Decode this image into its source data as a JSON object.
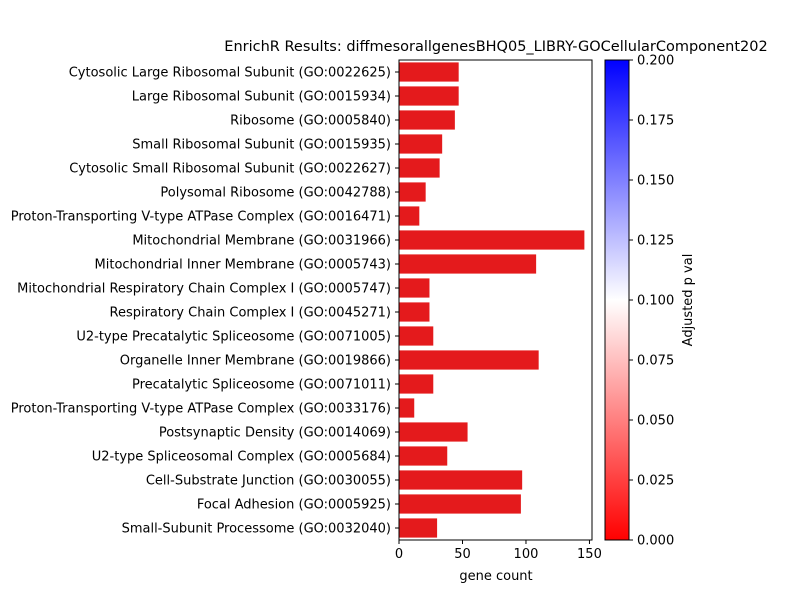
{
  "chart_data": {
    "type": "bar",
    "orientation": "horizontal",
    "title": "EnrichR Results: diffmesorallgenesBHQ05_LIBRY-GOCellularComponent202",
    "xlabel": "gene count",
    "ylabel": "",
    "xlim": [
      0,
      152
    ],
    "xticks": [
      0,
      50,
      100,
      150
    ],
    "bar_color": "#e41a1c",
    "categories": [
      "Cytosolic Large Ribosomal Subunit (GO:0022625)",
      "Large Ribosomal Subunit (GO:0015934)",
      "Ribosome (GO:0005840)",
      "Small Ribosomal Subunit (GO:0015935)",
      "Cytosolic Small Ribosomal Subunit (GO:0022627)",
      "Polysomal Ribosome (GO:0042788)",
      "Proton-Transporting V-type ATPase Complex (GO:0016471)",
      "Mitochondrial Membrane (GO:0031966)",
      "Mitochondrial Inner Membrane (GO:0005743)",
      "Mitochondrial Respiratory Chain Complex I (GO:0005747)",
      "Respiratory Chain Complex I (GO:0045271)",
      "U2-type Precatalytic Spliceosome (GO:0071005)",
      "Organelle Inner Membrane (GO:0019866)",
      "Precatalytic Spliceosome (GO:0071011)",
      "Proton-Transporting V-type ATPase Complex (GO:0033176)",
      "Postsynaptic Density (GO:0014069)",
      "U2-type Spliceosomal Complex (GO:0005684)",
      "Cell-Substrate Junction (GO:0030055)",
      "Focal Adhesion (GO:0005925)",
      "Small-Subunit Processome (GO:0032040)"
    ],
    "values": [
      47,
      47,
      44,
      34,
      32,
      21,
      16,
      146,
      108,
      24,
      24,
      27,
      110,
      27,
      12,
      54,
      38,
      97,
      96,
      30
    ],
    "colorbar": {
      "label": "Adjusted p val",
      "range": [
        0,
        0.2
      ],
      "ticks": [
        "0.000",
        "0.025",
        "0.050",
        "0.075",
        "0.100",
        "0.125",
        "0.150",
        "0.175",
        "0.200"
      ],
      "colors": [
        "#ff0000",
        "#ffffff",
        "#0000ff"
      ]
    }
  }
}
